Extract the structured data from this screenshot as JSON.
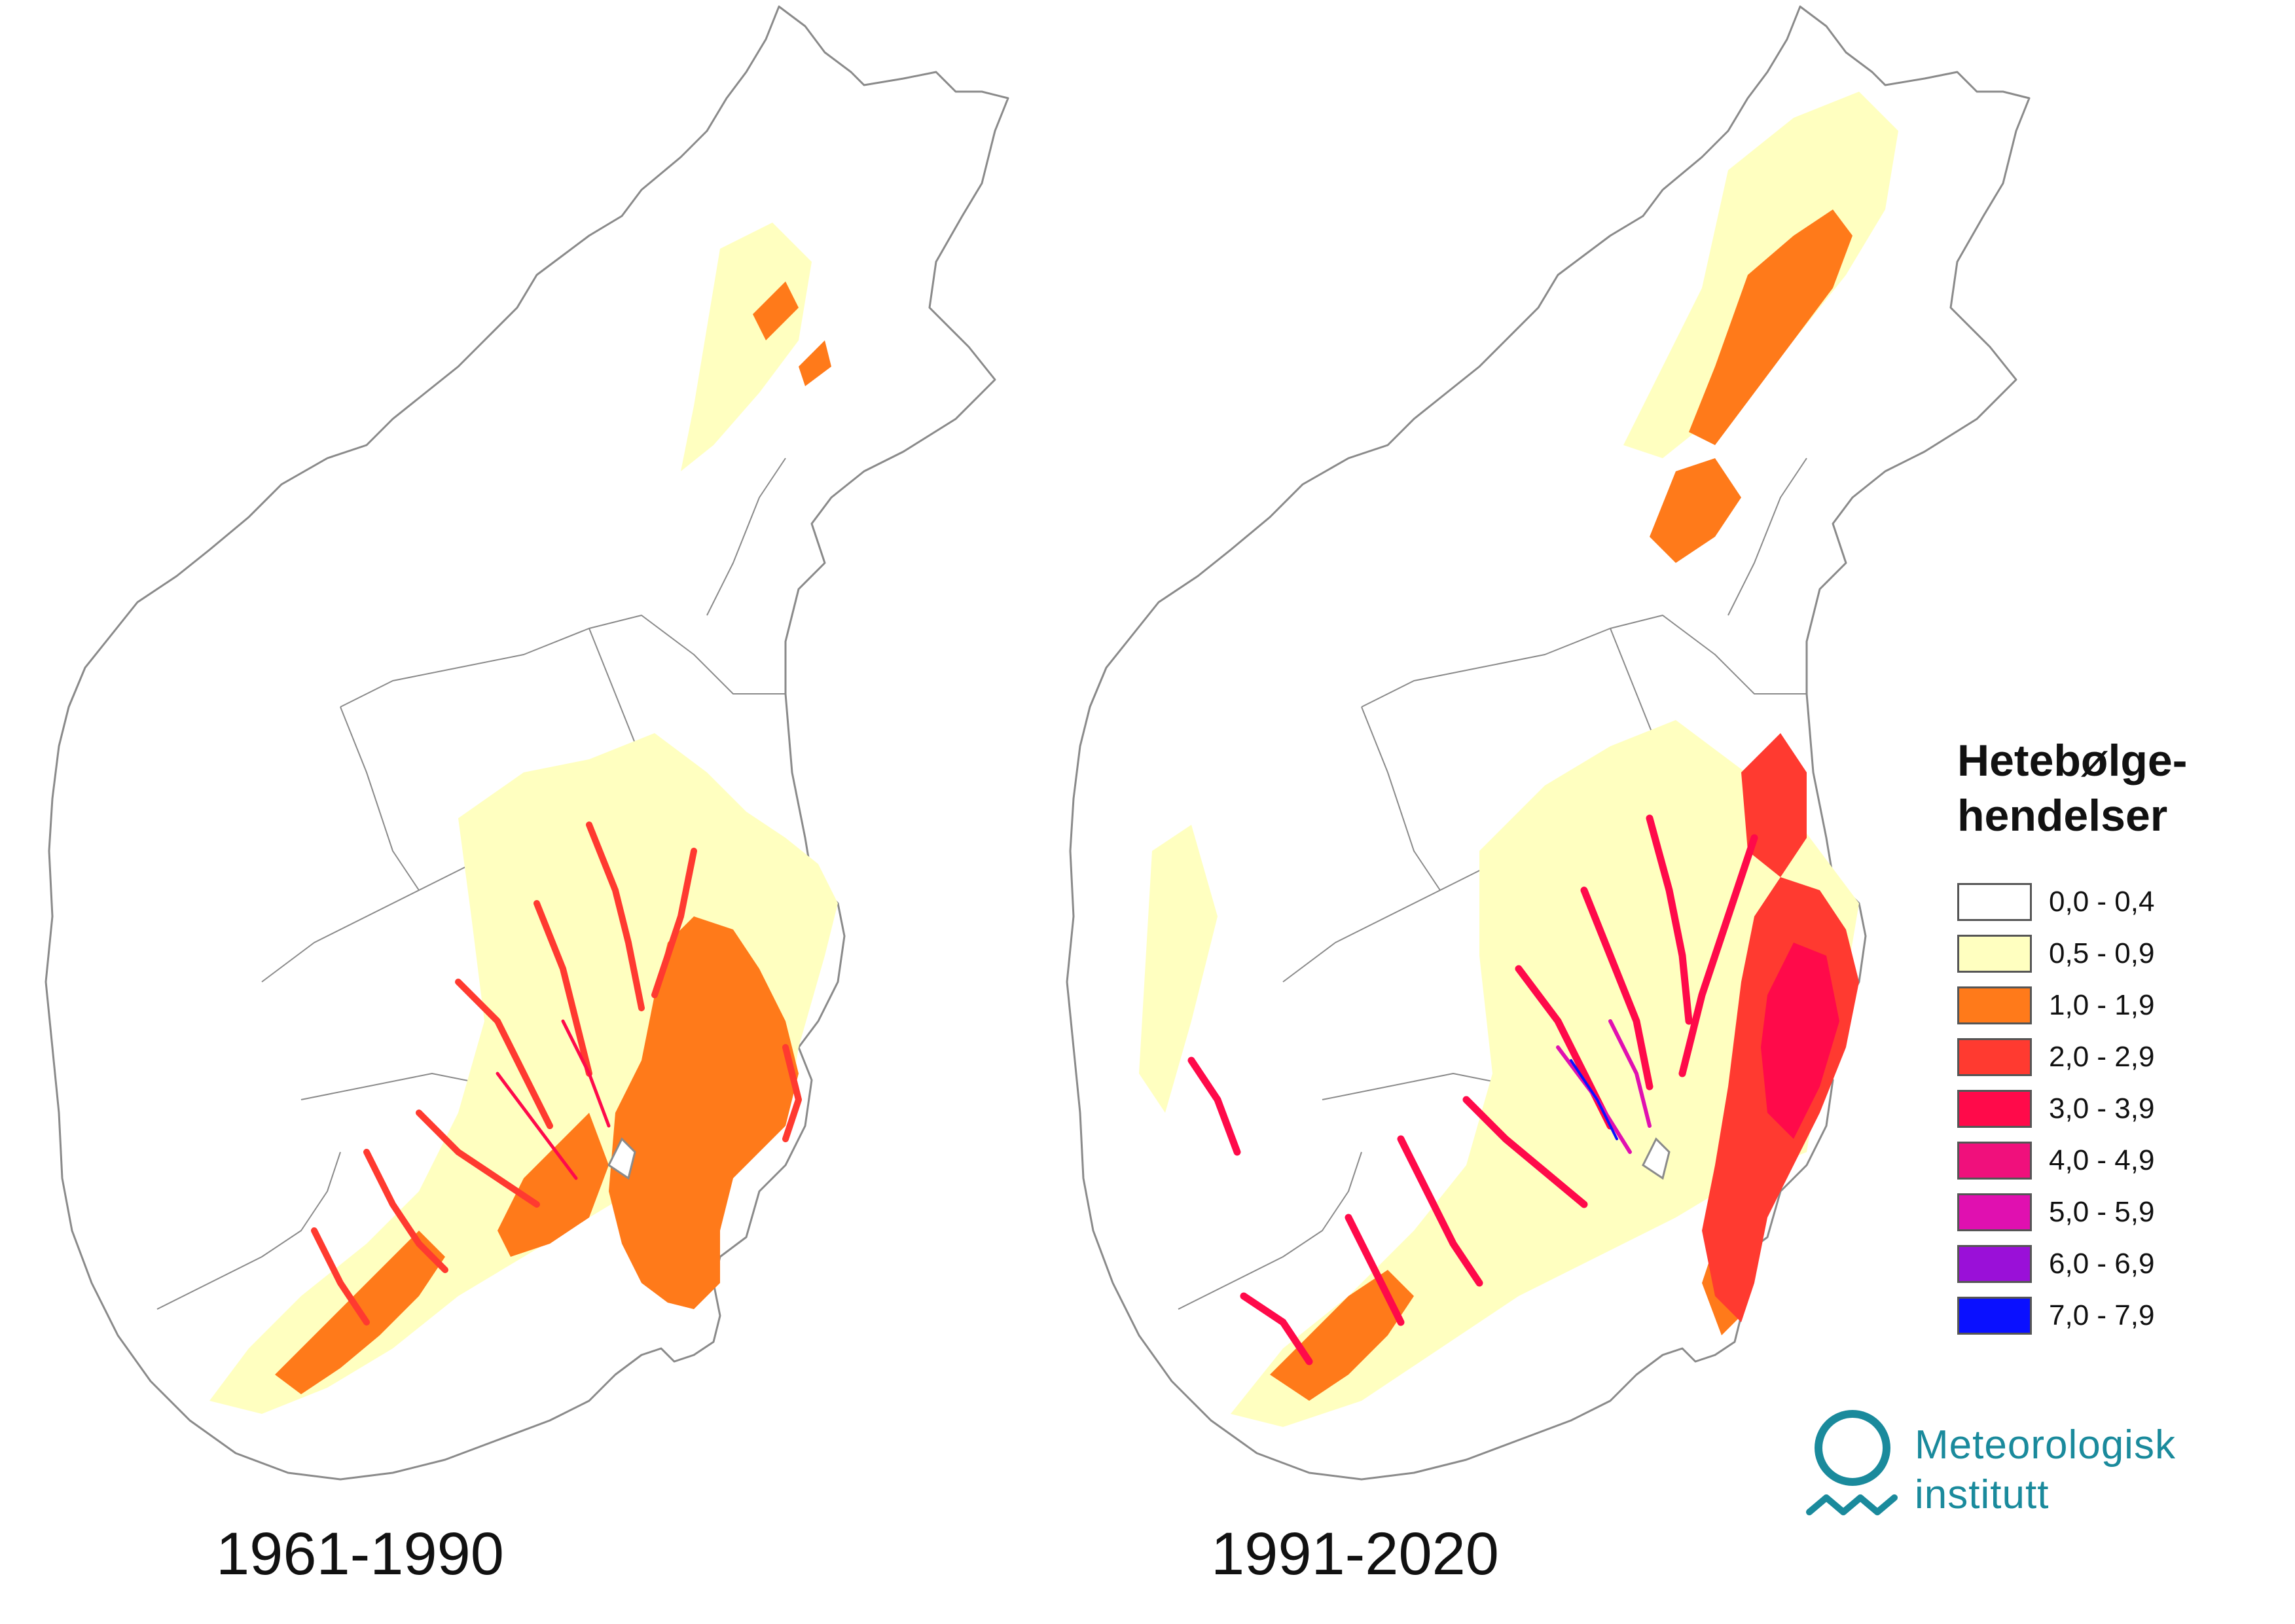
{
  "maps": [
    {
      "period": "1961-1990"
    },
    {
      "period": "1991-2020"
    }
  ],
  "legend": {
    "title_line1": "Hetebølge-",
    "title_line2": "hendelser",
    "classes": [
      {
        "range": "0,0 - 0,4",
        "color": "#ffffff"
      },
      {
        "range": "0,5 - 0,9",
        "color": "#ffffc0"
      },
      {
        "range": "1,0 - 1,9",
        "color": "#ff7a1a"
      },
      {
        "range": "2,0 - 2,9",
        "color": "#ff3a30"
      },
      {
        "range": "3,0 - 3,9",
        "color": "#ff0a4a"
      },
      {
        "range": "4,0 - 4,9",
        "color": "#f0107c"
      },
      {
        "range": "5,0 - 5,9",
        "color": "#e010b0"
      },
      {
        "range": "6,0 - 6,9",
        "color": "#9a10d8"
      },
      {
        "range": "7,0 - 7,9",
        "color": "#0a10ff"
      }
    ]
  },
  "logo": {
    "line1": "Meteorologisk",
    "line2": "institutt",
    "color": "#1a8a9c"
  },
  "colors": {
    "outline": "#8a8a8a",
    "low": "#ffffc0",
    "orange": "#ff7a1a",
    "red": "#ff3a30",
    "crimson": "#ff0a4a",
    "magenta": "#f0107c",
    "blue": "#0a10ff"
  }
}
